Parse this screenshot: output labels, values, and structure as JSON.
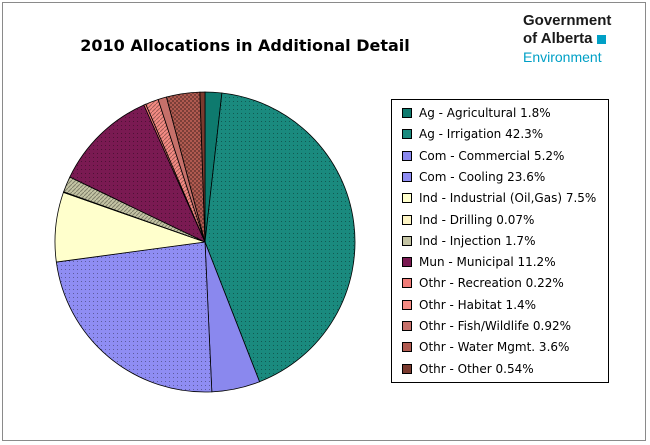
{
  "chart_data": {
    "type": "pie",
    "title": "2010 Allocations in Additional Detail",
    "legend_position": "right",
    "slices": [
      {
        "label": "Ag - Agricultural 1.8%",
        "value": 1.8,
        "color": "#0e7a6e",
        "pattern": "solid"
      },
      {
        "label": "Ag - Irrigation 42.3%",
        "value": 42.3,
        "color": "#1a8a7e",
        "pattern": "dots"
      },
      {
        "label": "Com - Commercial 5.2%",
        "value": 5.2,
        "color": "#8a88ee",
        "pattern": "solid"
      },
      {
        "label": "Com - Cooling 23.6%",
        "value": 23.6,
        "color": "#8f8df3",
        "pattern": "dots"
      },
      {
        "label": "Ind - Industrial (Oil,Gas) 7.5%",
        "value": 7.5,
        "color": "#ffffcc",
        "pattern": "solid"
      },
      {
        "label": "Ind - Drilling 0.07%",
        "value": 0.07,
        "color": "#fdf4c4",
        "pattern": "check"
      },
      {
        "label": "Ind - Injection 1.7%",
        "value": 1.7,
        "color": "#c4c4a4",
        "pattern": "hatch"
      },
      {
        "label": "Mun - Municipal 11.2%",
        "value": 11.2,
        "color": "#7a1a52",
        "pattern": "dots"
      },
      {
        "label": "Othr - Recreation 0.22%",
        "value": 0.22,
        "color": "#f07c78",
        "pattern": "solid"
      },
      {
        "label": "Othr - Habitat 1.4%",
        "value": 1.4,
        "color": "#f58c84",
        "pattern": "hatch"
      },
      {
        "label": "Othr - Fish/Wildlife 0.92%",
        "value": 0.92,
        "color": "#c6706a",
        "pattern": "solid"
      },
      {
        "label": "Othr - Water Mgmt. 3.6%",
        "value": 3.6,
        "color": "#b05a50",
        "pattern": "check"
      },
      {
        "label": "Othr - Other 0.54%",
        "value": 0.54,
        "color": "#7a3a2e",
        "pattern": "solid"
      }
    ]
  },
  "logo": {
    "line1": "Government",
    "line2": "of Alberta",
    "line3": "Environment",
    "accent_color": "#00a0c6"
  }
}
